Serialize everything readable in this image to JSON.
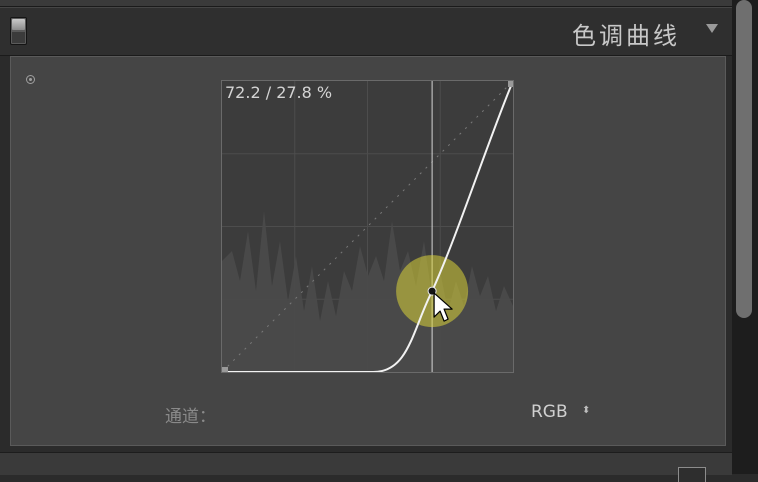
{
  "panel": {
    "title": "色调曲线",
    "collapse_icon": "triangle-down-icon"
  },
  "curve": {
    "readout": "72.2 / 27.8 %",
    "point_input": 72.2,
    "point_output": 27.8
  },
  "channel": {
    "label": "通道：",
    "value": "RGB",
    "arrow": "⬍"
  },
  "colors": {
    "accent_highlight": "#d8d238",
    "curve_line": "#f2f2f2",
    "panel_bg": "#454545"
  }
}
